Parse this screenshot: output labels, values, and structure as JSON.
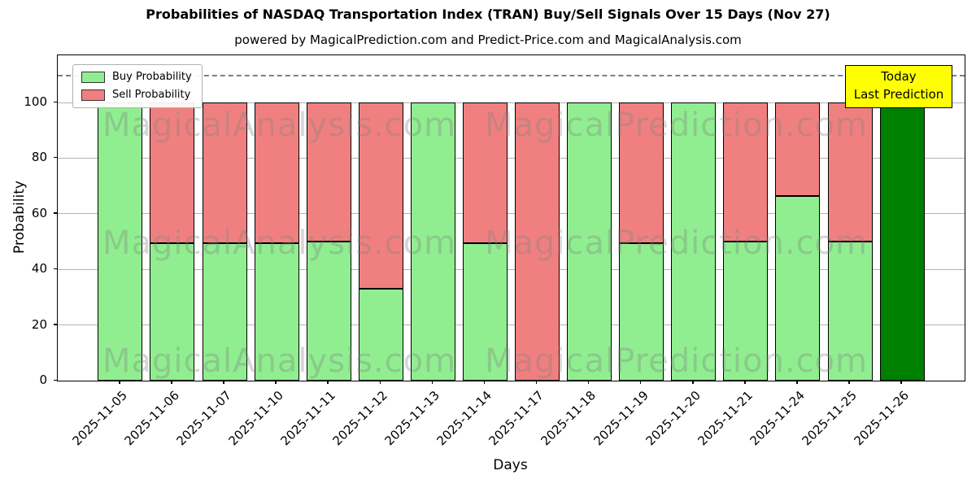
{
  "chart_data": {
    "type": "bar",
    "stacked": true,
    "title": "Probabilities of NASDAQ Transportation Index (TRAN) Buy/Sell Signals Over 15 Days (Nov 27)",
    "subtitle": "powered by MagicalPrediction.com and Predict-Price.com and MagicalAnalysis.com",
    "xlabel": "Days",
    "ylabel": "Probability",
    "categories": [
      "2025-11-05",
      "2025-11-06",
      "2025-11-07",
      "2025-11-10",
      "2025-11-11",
      "2025-11-12",
      "2025-11-13",
      "2025-11-14",
      "2025-11-17",
      "2025-11-18",
      "2025-11-19",
      "2025-11-20",
      "2025-11-21",
      "2025-11-24",
      "2025-11-25",
      "2025-11-26"
    ],
    "series": [
      {
        "name": "Buy Probability",
        "color": "#90ee90",
        "values": [
          100,
          49.5,
          49.5,
          49.5,
          50,
          33,
          100,
          49.5,
          0,
          100,
          49.5,
          100,
          50,
          66.5,
          50,
          100
        ]
      },
      {
        "name": "Sell Probability",
        "color": "#f08080",
        "values": [
          0,
          50.5,
          50.5,
          50.5,
          50,
          67,
          0,
          50.5,
          100,
          0,
          50.5,
          0,
          50,
          33.5,
          50,
          0
        ]
      }
    ],
    "today_index": 15,
    "today_color": "#008000",
    "ylim": [
      0,
      117
    ],
    "yticks": [
      0,
      20,
      40,
      60,
      80,
      100
    ],
    "dashed_line_y": 110,
    "grid": "horizontal",
    "legend_position": "upper-left"
  },
  "annotation": {
    "line1": "Today",
    "line2": "Last Prediction",
    "bg": "#ffff00"
  },
  "watermark": {
    "left_text": "MagicalAnalysis.com",
    "right_text": "MagicalPrediction.com",
    "rows": 3
  }
}
